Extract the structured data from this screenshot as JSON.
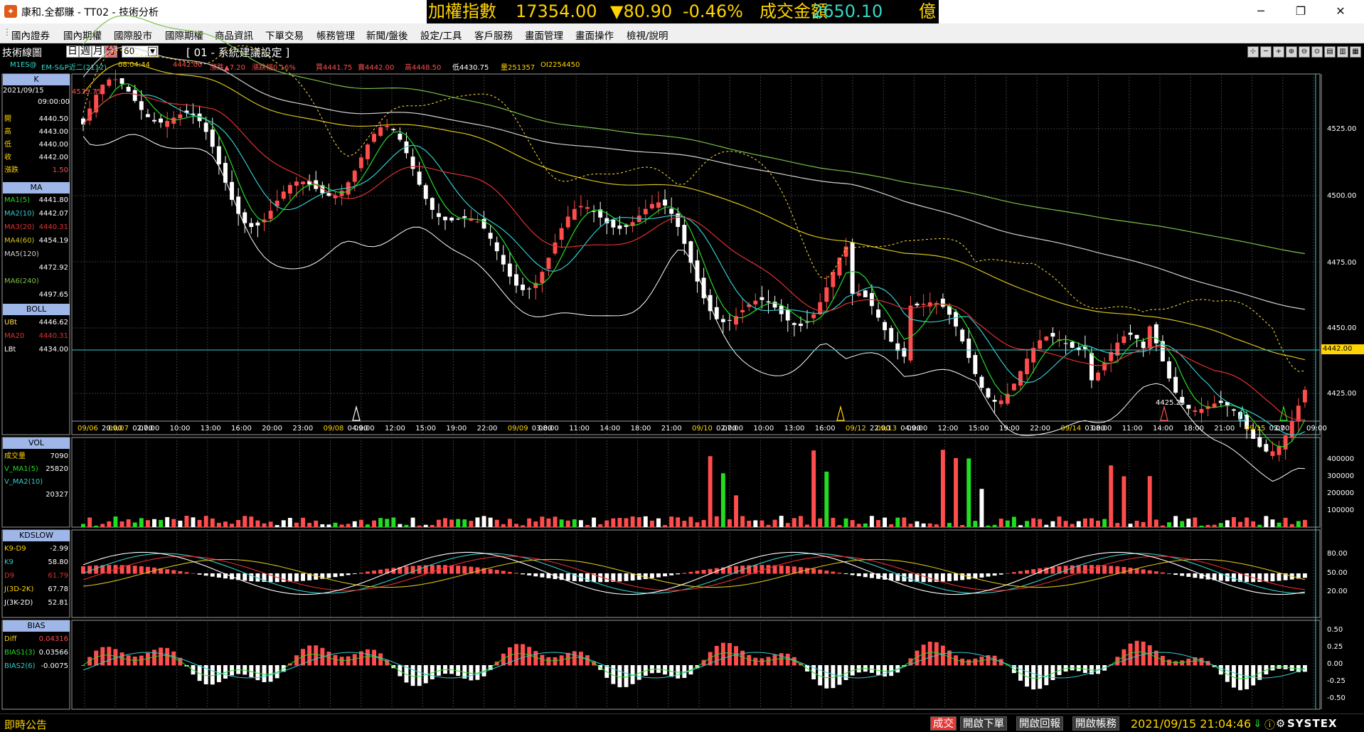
{
  "titlebar": {
    "app_icon": "systex-icon",
    "title": "康和.全都賺 - TT02 - 技術分析",
    "ticker": {
      "name": "加權指數",
      "value": "17354.00",
      "change": "▼80.90",
      "pct": "-0.46%",
      "vol_label": "成交金額",
      "vol": "2650.10",
      "unit": "億"
    }
  },
  "menu": [
    "國內證券",
    "國內期權",
    "國際股市",
    "國際期權",
    "商品資訊",
    "下單交易",
    "帳務管理",
    "新聞/盤後",
    "設定/工具",
    "客戶服務",
    "畫面管理",
    "畫面操作",
    "檢視/說明"
  ],
  "chart_header": {
    "title": "技術線圖",
    "periods": [
      "日",
      "週",
      "月",
      "分"
    ],
    "selected_period": "分",
    "minutes": "60",
    "setting": "[ 01 - 系統建議設定 ]"
  },
  "infoline": {
    "symbol": "M1ES@",
    "name": "EM-S&P近二(2112)",
    "time": "08:04:44",
    "last": "4442.00",
    "chg": "漲跌▲7.20",
    "chgpct": "漲跌幅0.16%",
    "buy": "買4441.75",
    "sell": "賣4442.00",
    "high": "高4448.50",
    "low": "低4430.75",
    "vol": "量251357",
    "oi": "OI2254450"
  },
  "panels": {
    "k": {
      "title": "K",
      "date": "2021/09/15",
      "time": "09:00:00",
      "rows": [
        [
          "開",
          "4440.50"
        ],
        [
          "高",
          "4443.00"
        ],
        [
          "低",
          "4440.00"
        ],
        [
          "收",
          "4442.00"
        ],
        [
          "漲跌",
          "1.50"
        ]
      ]
    },
    "ma": {
      "title": "MA",
      "rows": [
        [
          "MA1(5)",
          "4441.80"
        ],
        [
          "MA2(10)",
          "4442.07"
        ],
        [
          "MA3(20)",
          "4440.31"
        ],
        [
          "MA4(60)",
          "4454.19"
        ],
        [
          "MA5(120)",
          ""
        ],
        [
          "",
          "4472.92"
        ],
        [
          "MA6(240)",
          ""
        ],
        [
          "",
          "4497.65"
        ]
      ]
    },
    "boll": {
      "title": "BOLL",
      "rows": [
        [
          "UBt",
          "4446.62"
        ],
        [
          "MA20",
          "4440.31"
        ],
        [
          "LBt",
          "4434.00"
        ]
      ]
    },
    "vol": {
      "title": "VOL",
      "rows": [
        [
          "成交量",
          "7090"
        ],
        [
          "V_MA1(5)",
          "25820"
        ],
        [
          "V_MA2(10)",
          ""
        ],
        [
          "",
          "20327"
        ]
      ]
    },
    "kd": {
      "title": "KDSLOW",
      "rows": [
        [
          "K9-D9",
          "-2.99"
        ],
        [
          "K9",
          "58.80"
        ],
        [
          "D9",
          "61.79"
        ],
        [
          "J(3D-2K)",
          "67.78"
        ],
        [
          "J(3K-2D)",
          "52.81"
        ]
      ]
    },
    "bias": {
      "title": "BIAS",
      "rows": [
        [
          "Diff",
          "0.04316"
        ],
        [
          "BIAS1(3)",
          "0.03566"
        ],
        [
          "BIAS2(6)",
          "-0.0075"
        ]
      ]
    }
  },
  "price_axis": [
    "4525.00",
    "4500.00",
    "4475.00",
    "4450.00",
    "4425.00"
  ],
  "price_last": "4442.00",
  "price_top": "4535.75",
  "price_min_label": "4425.25",
  "vol_axis": [
    "400000",
    "300000",
    "200000",
    "100000"
  ],
  "kd_axis": [
    "80.00",
    "50.00",
    "20.00"
  ],
  "bias_axis": [
    "0.50",
    "0.25",
    "0.00",
    "-0.25",
    "-0.50"
  ],
  "time_labels": [
    [
      "09/06",
      "20:00"
    ],
    [
      "09/07",
      "02:00"
    ],
    [
      "",
      "07:00"
    ],
    [
      "",
      "10:00"
    ],
    [
      "",
      "13:00"
    ],
    [
      "",
      "16:00"
    ],
    [
      "",
      "20:00"
    ],
    [
      "",
      "23:00"
    ],
    [
      "09/08",
      "04:00"
    ],
    [
      "",
      "09:00"
    ],
    [
      "",
      "12:00"
    ],
    [
      "",
      "15:00"
    ],
    [
      "",
      "19:00"
    ],
    [
      "",
      "22:00"
    ],
    [
      "09/09",
      "03:00"
    ],
    [
      "",
      "08:00"
    ],
    [
      "",
      "11:00"
    ],
    [
      "",
      "14:00"
    ],
    [
      "",
      "18:00"
    ],
    [
      "",
      "21:00"
    ],
    [
      "09/10",
      "02:00"
    ],
    [
      "",
      "07:00"
    ],
    [
      "",
      "10:00"
    ],
    [
      "",
      "13:00"
    ],
    [
      "",
      "16:00"
    ],
    [
      "09/12",
      "22:00"
    ],
    [
      "09/13",
      "04:00"
    ],
    [
      "",
      "09:00"
    ],
    [
      "",
      "12:00"
    ],
    [
      "",
      "15:00"
    ],
    [
      "",
      "19:00"
    ],
    [
      "",
      "22:00"
    ],
    [
      "09/14",
      "03:00"
    ],
    [
      "",
      "08:00"
    ],
    [
      "",
      "11:00"
    ],
    [
      "",
      "14:00"
    ],
    [
      "",
      "18:00"
    ],
    [
      "",
      "21:00"
    ],
    [
      "09/15",
      "02:00"
    ],
    [
      "",
      "07"
    ],
    [
      "",
      "09:00"
    ]
  ],
  "statusbar": {
    "bulletin": "即時公告",
    "buttons": [
      "成交",
      "開啟下單",
      "開啟回報",
      "開啟帳務"
    ],
    "clock": "2021/09/15 21:04:46",
    "logo": "SYSTEX"
  },
  "colors": {
    "up": "#ff4d4d",
    "down": "#ffffff",
    "ma5": "#22dd22",
    "ma10": "#33cccc",
    "ma20": "#e23030",
    "ma60": "#d8c21a",
    "ma120": "#d0d0d0",
    "ma240": "#7cc04a",
    "boll": "#ffffff",
    "ub": "#ffe040"
  }
}
